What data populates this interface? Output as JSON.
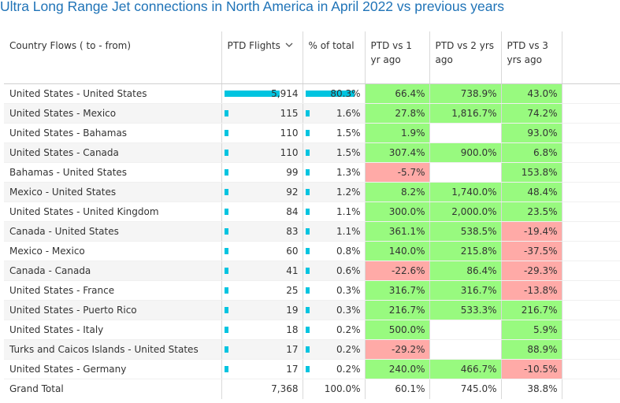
{
  "title": "Ultra Long Range Jet connections in North America in April 2022 vs previous years",
  "columns": {
    "flow": "Country Flows ( to - from)",
    "ptd_flights": "PTD Flights",
    "pct_total": "% of total",
    "vs1": "PTD vs 1 yr ago",
    "vs2": "PTD vs 2 yrs ago",
    "vs3": "PTD vs 3 yrs ago",
    "sort_icon": "chevron-down-icon"
  },
  "colors": {
    "title": "#1f73b7",
    "bar": "#00c4e0",
    "positive": "#98fa7f",
    "negative": "#ffaaa7"
  },
  "rows": [
    {
      "flow": "United States - United States",
      "flights": "5,914",
      "flights_value": 5914,
      "pct": "80.3%",
      "pct_value": 80.3,
      "vs1": "66.4%",
      "vs1_sign": "pos",
      "vs2": "738.9%",
      "vs2_sign": "pos",
      "vs3": "43.0%",
      "vs3_sign": "pos"
    },
    {
      "flow": "United States - Mexico",
      "flights": "115",
      "flights_value": 115,
      "pct": "1.6%",
      "pct_value": 1.6,
      "vs1": "27.8%",
      "vs1_sign": "pos",
      "vs2": "1,816.7%",
      "vs2_sign": "pos",
      "vs3": "74.2%",
      "vs3_sign": "pos"
    },
    {
      "flow": "United States - Bahamas",
      "flights": "110",
      "flights_value": 110,
      "pct": "1.5%",
      "pct_value": 1.5,
      "vs1": "1.9%",
      "vs1_sign": "pos",
      "vs2": "",
      "vs2_sign": "empty",
      "vs3": "93.0%",
      "vs3_sign": "pos"
    },
    {
      "flow": "United States - Canada",
      "flights": "110",
      "flights_value": 110,
      "pct": "1.5%",
      "pct_value": 1.5,
      "vs1": "307.4%",
      "vs1_sign": "pos",
      "vs2": "900.0%",
      "vs2_sign": "pos",
      "vs3": "6.8%",
      "vs3_sign": "pos"
    },
    {
      "flow": "Bahamas - United States",
      "flights": "99",
      "flights_value": 99,
      "pct": "1.3%",
      "pct_value": 1.3,
      "vs1": "-5.7%",
      "vs1_sign": "neg",
      "vs2": "",
      "vs2_sign": "empty",
      "vs3": "153.8%",
      "vs3_sign": "pos"
    },
    {
      "flow": "Mexico - United States",
      "flights": "92",
      "flights_value": 92,
      "pct": "1.2%",
      "pct_value": 1.2,
      "vs1": "8.2%",
      "vs1_sign": "pos",
      "vs2": "1,740.0%",
      "vs2_sign": "pos",
      "vs3": "48.4%",
      "vs3_sign": "pos"
    },
    {
      "flow": "United States - United Kingdom",
      "flights": "84",
      "flights_value": 84,
      "pct": "1.1%",
      "pct_value": 1.1,
      "vs1": "300.0%",
      "vs1_sign": "pos",
      "vs2": "2,000.0%",
      "vs2_sign": "pos",
      "vs3": "23.5%",
      "vs3_sign": "pos"
    },
    {
      "flow": "Canada - United States",
      "flights": "83",
      "flights_value": 83,
      "pct": "1.1%",
      "pct_value": 1.1,
      "vs1": "361.1%",
      "vs1_sign": "pos",
      "vs2": "538.5%",
      "vs2_sign": "pos",
      "vs3": "-19.4%",
      "vs3_sign": "neg"
    },
    {
      "flow": "Mexico - Mexico",
      "flights": "60",
      "flights_value": 60,
      "pct": "0.8%",
      "pct_value": 0.8,
      "vs1": "140.0%",
      "vs1_sign": "pos",
      "vs2": "215.8%",
      "vs2_sign": "pos",
      "vs3": "-37.5%",
      "vs3_sign": "neg"
    },
    {
      "flow": "Canada - Canada",
      "flights": "41",
      "flights_value": 41,
      "pct": "0.6%",
      "pct_value": 0.6,
      "vs1": "-22.6%",
      "vs1_sign": "neg",
      "vs2": "86.4%",
      "vs2_sign": "pos",
      "vs3": "-29.3%",
      "vs3_sign": "neg"
    },
    {
      "flow": "United States - France",
      "flights": "25",
      "flights_value": 25,
      "pct": "0.3%",
      "pct_value": 0.3,
      "vs1": "316.7%",
      "vs1_sign": "pos",
      "vs2": "316.7%",
      "vs2_sign": "pos",
      "vs3": "-13.8%",
      "vs3_sign": "neg"
    },
    {
      "flow": "United States - Puerto Rico",
      "flights": "19",
      "flights_value": 19,
      "pct": "0.3%",
      "pct_value": 0.3,
      "vs1": "216.7%",
      "vs1_sign": "pos",
      "vs2": "533.3%",
      "vs2_sign": "pos",
      "vs3": "216.7%",
      "vs3_sign": "pos"
    },
    {
      "flow": "United States - Italy",
      "flights": "18",
      "flights_value": 18,
      "pct": "0.2%",
      "pct_value": 0.2,
      "vs1": "500.0%",
      "vs1_sign": "pos",
      "vs2": "",
      "vs2_sign": "empty",
      "vs3": "5.9%",
      "vs3_sign": "pos"
    },
    {
      "flow": "Turks and Caicos Islands - United States",
      "flights": "17",
      "flights_value": 17,
      "pct": "0.2%",
      "pct_value": 0.2,
      "vs1": "-29.2%",
      "vs1_sign": "neg",
      "vs2": "",
      "vs2_sign": "empty",
      "vs3": "88.9%",
      "vs3_sign": "pos"
    },
    {
      "flow": "United States - Germany",
      "flights": "17",
      "flights_value": 17,
      "pct": "0.2%",
      "pct_value": 0.2,
      "vs1": "240.0%",
      "vs1_sign": "pos",
      "vs2": "466.7%",
      "vs2_sign": "pos",
      "vs3": "-10.5%",
      "vs3_sign": "neg"
    }
  ],
  "total": {
    "label": "Grand Total",
    "flights": "7,368",
    "pct": "100.0%",
    "vs1": "60.1%",
    "vs2": "745.0%",
    "vs3": "38.8%"
  }
}
